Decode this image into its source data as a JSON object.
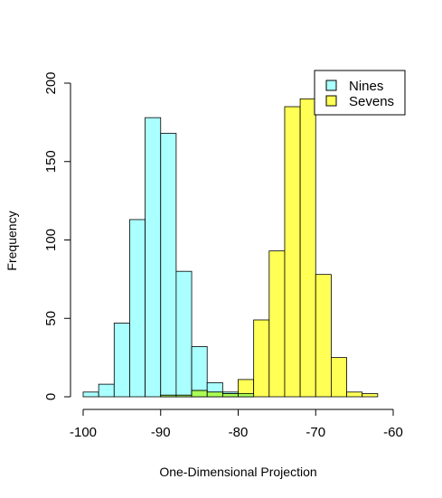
{
  "chart_data": {
    "type": "histogram",
    "title": "",
    "xlabel": "One-Dimensional Projection",
    "ylabel": "Frequency",
    "xlim": [
      -100,
      -60
    ],
    "ylim": [
      0,
      200
    ],
    "x_ticks": [
      -100,
      -90,
      -80,
      -70,
      -60
    ],
    "y_ticks": [
      0,
      50,
      100,
      150,
      200
    ],
    "x_tick_labels": [
      "-100",
      "-90",
      "-80",
      "-70",
      "-60"
    ],
    "y_tick_labels": [
      "0",
      "50",
      "100",
      "150",
      "200"
    ],
    "bin_width": 2,
    "legend_position": "top-right",
    "series": [
      {
        "name": "Nines",
        "color": "#aaffff",
        "bins": [
          {
            "x0": -100,
            "x1": -98,
            "count": 3
          },
          {
            "x0": -98,
            "x1": -96,
            "count": 8
          },
          {
            "x0": -96,
            "x1": -94,
            "count": 47
          },
          {
            "x0": -94,
            "x1": -92,
            "count": 113
          },
          {
            "x0": -92,
            "x1": -90,
            "count": 178
          },
          {
            "x0": -90,
            "x1": -88,
            "count": 168
          },
          {
            "x0": -88,
            "x1": -86,
            "count": 80
          },
          {
            "x0": -86,
            "x1": -84,
            "count": 32
          },
          {
            "x0": -84,
            "x1": -82,
            "count": 9
          },
          {
            "x0": -82,
            "x1": -80,
            "count": 3
          },
          {
            "x0": -80,
            "x1": -78,
            "count": 2
          }
        ]
      },
      {
        "name": "Sevens",
        "color": "#ffff55",
        "bins": [
          {
            "x0": -90,
            "x1": -88,
            "count": 1
          },
          {
            "x0": -88,
            "x1": -86,
            "count": 1
          },
          {
            "x0": -86,
            "x1": -84,
            "count": 4
          },
          {
            "x0": -84,
            "x1": -82,
            "count": 3
          },
          {
            "x0": -82,
            "x1": -80,
            "count": 2
          },
          {
            "x0": -80,
            "x1": -78,
            "count": 11
          },
          {
            "x0": -78,
            "x1": -76,
            "count": 49
          },
          {
            "x0": -76,
            "x1": -74,
            "count": 93
          },
          {
            "x0": -74,
            "x1": -72,
            "count": 185
          },
          {
            "x0": -72,
            "x1": -70,
            "count": 190
          },
          {
            "x0": -70,
            "x1": -68,
            "count": 78
          },
          {
            "x0": -68,
            "x1": -66,
            "count": 25
          },
          {
            "x0": -66,
            "x1": -64,
            "count": 3
          },
          {
            "x0": -64,
            "x1": -62,
            "count": 2
          }
        ]
      }
    ],
    "overlap_color": "#aaff55"
  }
}
